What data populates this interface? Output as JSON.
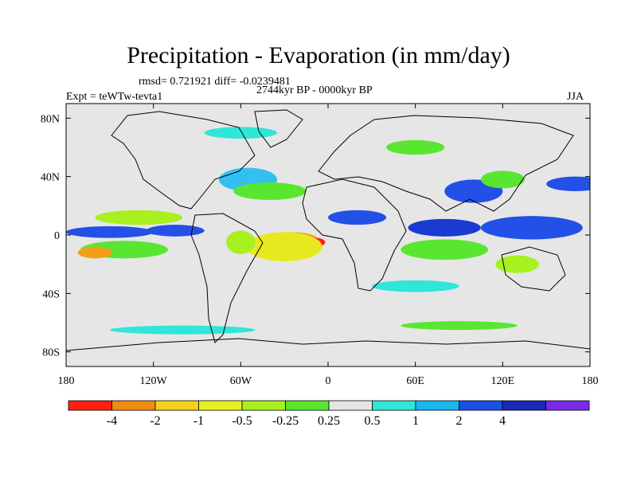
{
  "title": "Precipitation - Evaporation (in mm/day)",
  "stats_line": "rmsd= 0.721921 diff= -0.0239481",
  "period_line": "2744kyr BP - 0000kyr BP",
  "experiment_line": "Expt = teWTw-tevta1",
  "season": "JJA",
  "map": {
    "lat_ticks": [
      {
        "value": 80,
        "label": "80N"
      },
      {
        "value": 40,
        "label": "40N"
      },
      {
        "value": 0,
        "label": "0"
      },
      {
        "value": -40,
        "label": "40S"
      },
      {
        "value": -80,
        "label": "80S"
      }
    ],
    "lon_ticks": [
      {
        "value": -180,
        "label": "180"
      },
      {
        "value": -120,
        "label": "120W"
      },
      {
        "value": -60,
        "label": "60W"
      },
      {
        "value": 0,
        "label": "0"
      },
      {
        "value": 60,
        "label": "60E"
      },
      {
        "value": 120,
        "label": "120E"
      },
      {
        "value": 180,
        "label": "180"
      }
    ],
    "lon_range": [
      -180,
      180
    ],
    "lat_range": [
      -90,
      90
    ],
    "background_color": "#e6e6e6",
    "anomaly_regions": [
      {
        "name": "eq-pacific-wet",
        "lon": -150,
        "lat": 2,
        "rx": 30,
        "ry": 4,
        "color": "#2350e6"
      },
      {
        "name": "eq-pacific-wet-2",
        "lon": -105,
        "lat": 3,
        "rx": 20,
        "ry": 4,
        "color": "#2350e6"
      },
      {
        "name": "eq-pacific-dry-band",
        "lon": -140,
        "lat": -10,
        "rx": 30,
        "ry": 6,
        "color": "#59e630"
      },
      {
        "name": "south-pacific-dry",
        "lon": -160,
        "lat": -12,
        "rx": 12,
        "ry": 4,
        "color": "#f2a01a"
      },
      {
        "name": "north-pacific-dry",
        "lon": -130,
        "lat": 12,
        "rx": 30,
        "ry": 5,
        "color": "#a8f020"
      },
      {
        "name": "atlantic-dry",
        "lon": -25,
        "lat": -3,
        "rx": 18,
        "ry": 5,
        "color": "#f2a01a"
      },
      {
        "name": "atlantic-dry-core",
        "lon": -8,
        "lat": -5,
        "rx": 6,
        "ry": 3,
        "color": "#ff2010"
      },
      {
        "name": "atlantic-dry-outer",
        "lon": -30,
        "lat": -8,
        "rx": 26,
        "ry": 10,
        "color": "#e8e820"
      },
      {
        "name": "sahel-wet",
        "lon": 20,
        "lat": 12,
        "rx": 20,
        "ry": 5,
        "color": "#2350e6"
      },
      {
        "name": "indian-ocean-wet",
        "lon": 80,
        "lat": 5,
        "rx": 25,
        "ry": 6,
        "color": "#1a3ad0"
      },
      {
        "name": "indian-ocean-dry",
        "lon": 80,
        "lat": -10,
        "rx": 30,
        "ry": 7,
        "color": "#59e630"
      },
      {
        "name": "west-pacific-wet",
        "lon": 140,
        "lat": 5,
        "rx": 35,
        "ry": 8,
        "color": "#2350e6"
      },
      {
        "name": "asia-wet",
        "lon": 100,
        "lat": 30,
        "rx": 20,
        "ry": 8,
        "color": "#2350e6"
      },
      {
        "name": "asia-dry",
        "lon": 120,
        "lat": 38,
        "rx": 15,
        "ry": 6,
        "color": "#59e630"
      },
      {
        "name": "north-pacific-wet",
        "lon": 170,
        "lat": 35,
        "rx": 20,
        "ry": 5,
        "color": "#2350e6"
      },
      {
        "name": "north-atlantic-wet",
        "lon": -55,
        "lat": 38,
        "rx": 20,
        "ry": 8,
        "color": "#33c0f0"
      },
      {
        "name": "north-atlantic-dry",
        "lon": -40,
        "lat": 30,
        "rx": 25,
        "ry": 6,
        "color": "#59e630"
      },
      {
        "name": "amazon-dry",
        "lon": -60,
        "lat": -5,
        "rx": 10,
        "ry": 8,
        "color": "#a8f020"
      },
      {
        "name": "south-indian-wet",
        "lon": 60,
        "lat": -35,
        "rx": 30,
        "ry": 4,
        "color": "#30e6d8"
      },
      {
        "name": "southern-ocean-wet",
        "lon": -100,
        "lat": -65,
        "rx": 50,
        "ry": 3,
        "color": "#30e6d8"
      },
      {
        "name": "southern-ocean-dry",
        "lon": 90,
        "lat": -62,
        "rx": 40,
        "ry": 3,
        "color": "#59e630"
      },
      {
        "name": "arctic-wet",
        "lon": -60,
        "lat": 70,
        "rx": 25,
        "ry": 4,
        "color": "#30e6d8"
      },
      {
        "name": "siberia-dry",
        "lon": 60,
        "lat": 60,
        "rx": 20,
        "ry": 5,
        "color": "#59e630"
      },
      {
        "name": "australia-dry",
        "lon": 130,
        "lat": -20,
        "rx": 15,
        "ry": 6,
        "color": "#a8f020"
      }
    ]
  },
  "colorbar": {
    "colors": [
      "#ff2010",
      "#f28a14",
      "#f2d21a",
      "#e8f020",
      "#a8f020",
      "#59e630",
      "#e6e6e6",
      "#30e6d8",
      "#1ab8f0",
      "#1a50e6",
      "#1a2ab8",
      "#7a2ae6"
    ],
    "labels": [
      "-4",
      "-2",
      "-1",
      "-0.5",
      "-0.25",
      "0.25",
      "0.5",
      "1",
      "2",
      "4"
    ]
  }
}
